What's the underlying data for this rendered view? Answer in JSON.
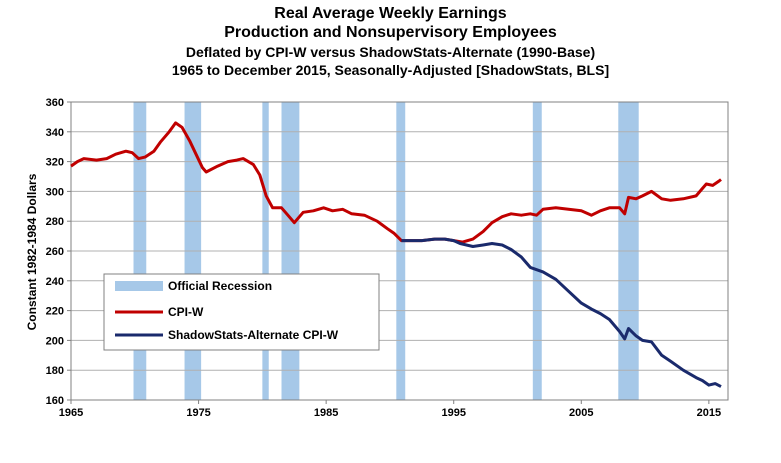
{
  "chart_data": {
    "type": "line",
    "title": "Real Average Weekly Earnings",
    "subtitle1": "Production and Nonsupervisory Employees",
    "subtitle2": "Deflated by CPI-W versus ShadowStats-Alternate (1990-Base)",
    "subtitle3": "1965 to December 2015, Seasonally-Adjusted [ShadowStats, BLS]",
    "xlabel": "",
    "ylabel": "Constant 1982-1984 Dollars",
    "xlim": [
      1965,
      2016.5
    ],
    "ylim": [
      160,
      360
    ],
    "xticks": [
      1965,
      1975,
      1985,
      1995,
      2005,
      2015
    ],
    "yticks": [
      160,
      180,
      200,
      220,
      240,
      260,
      280,
      300,
      320,
      340,
      360
    ],
    "recessions": [
      [
        1969.9,
        1970.9
      ],
      [
        1973.9,
        1975.2
      ],
      [
        1980.0,
        1980.5
      ],
      [
        1981.5,
        1982.9
      ],
      [
        1990.5,
        1991.2
      ],
      [
        2001.2,
        2001.9
      ],
      [
        2007.9,
        2009.5
      ]
    ],
    "legend": {
      "position": "lower-left",
      "recession_label": "Official Recession",
      "recession_color": "#a6c8e8"
    },
    "series": [
      {
        "name": "CPI-W",
        "color": "#c00000",
        "points": [
          [
            1965,
            317
          ],
          [
            1965.5,
            320
          ],
          [
            1966,
            322
          ],
          [
            1967,
            321
          ],
          [
            1967.8,
            322
          ],
          [
            1968.5,
            325
          ],
          [
            1969.3,
            327
          ],
          [
            1969.8,
            326
          ],
          [
            1970.3,
            322
          ],
          [
            1970.8,
            323
          ],
          [
            1971.5,
            327
          ],
          [
            1972,
            333
          ],
          [
            1972.7,
            340
          ],
          [
            1973.2,
            346
          ],
          [
            1973.7,
            343
          ],
          [
            1974.3,
            334
          ],
          [
            1974.8,
            325
          ],
          [
            1975.3,
            316
          ],
          [
            1975.6,
            313
          ],
          [
            1976.5,
            317
          ],
          [
            1977.3,
            320
          ],
          [
            1978,
            321
          ],
          [
            1978.5,
            322
          ],
          [
            1979.3,
            318
          ],
          [
            1979.8,
            311
          ],
          [
            1980.3,
            297
          ],
          [
            1980.8,
            289
          ],
          [
            1981.5,
            289
          ],
          [
            1982,
            284
          ],
          [
            1982.5,
            279
          ],
          [
            1983.2,
            286
          ],
          [
            1984,
            287
          ],
          [
            1984.8,
            289
          ],
          [
            1985.5,
            287
          ],
          [
            1986.3,
            288
          ],
          [
            1987,
            285
          ],
          [
            1988,
            284
          ],
          [
            1989,
            280
          ],
          [
            1989.8,
            275
          ],
          [
            1990.3,
            272
          ],
          [
            1990.9,
            267
          ],
          [
            1991.5,
            267
          ],
          [
            1992.5,
            267
          ],
          [
            1993.5,
            268
          ],
          [
            1994.3,
            268
          ],
          [
            1995,
            267
          ],
          [
            1995.7,
            266
          ],
          [
            1996.5,
            268
          ],
          [
            1997.3,
            273
          ],
          [
            1998,
            279
          ],
          [
            1998.8,
            283
          ],
          [
            1999.5,
            285
          ],
          [
            2000.3,
            284
          ],
          [
            2001,
            285
          ],
          [
            2001.5,
            284
          ],
          [
            2002,
            288
          ],
          [
            2003,
            289
          ],
          [
            2004,
            288
          ],
          [
            2005,
            287
          ],
          [
            2005.8,
            284
          ],
          [
            2006.5,
            287
          ],
          [
            2007.2,
            289
          ],
          [
            2008,
            289
          ],
          [
            2008.4,
            285
          ],
          [
            2008.7,
            296
          ],
          [
            2009.3,
            295
          ],
          [
            2009.8,
            297
          ],
          [
            2010.5,
            300
          ],
          [
            2011.3,
            295
          ],
          [
            2012,
            294
          ],
          [
            2013,
            295
          ],
          [
            2014,
            297
          ],
          [
            2014.5,
            302
          ],
          [
            2014.8,
            305
          ],
          [
            2015.3,
            304
          ],
          [
            2015.8,
            307
          ],
          [
            2015.95,
            308
          ]
        ]
      },
      {
        "name": "ShadowStats-Alternate CPI-W",
        "color": "#1a2a6c",
        "points": [
          [
            1990.9,
            267
          ],
          [
            1991.5,
            267
          ],
          [
            1992.5,
            267
          ],
          [
            1993.5,
            268
          ],
          [
            1994.3,
            268
          ],
          [
            1995,
            267
          ],
          [
            1995.5,
            265
          ],
          [
            1996.5,
            263
          ],
          [
            1997.3,
            264
          ],
          [
            1998,
            265
          ],
          [
            1998.8,
            264
          ],
          [
            1999.5,
            261
          ],
          [
            2000.3,
            256
          ],
          [
            2001,
            249
          ],
          [
            2002,
            246
          ],
          [
            2003,
            241
          ],
          [
            2004,
            233
          ],
          [
            2005,
            225
          ],
          [
            2005.8,
            221
          ],
          [
            2006.5,
            218
          ],
          [
            2007.2,
            214
          ],
          [
            2008,
            206
          ],
          [
            2008.4,
            201
          ],
          [
            2008.7,
            208
          ],
          [
            2009.3,
            203
          ],
          [
            2009.8,
            200
          ],
          [
            2010.5,
            199
          ],
          [
            2011.3,
            190
          ],
          [
            2012,
            186
          ],
          [
            2013,
            180
          ],
          [
            2014,
            175
          ],
          [
            2014.5,
            173
          ],
          [
            2015,
            170
          ],
          [
            2015.5,
            171
          ],
          [
            2015.95,
            169
          ]
        ]
      }
    ]
  }
}
